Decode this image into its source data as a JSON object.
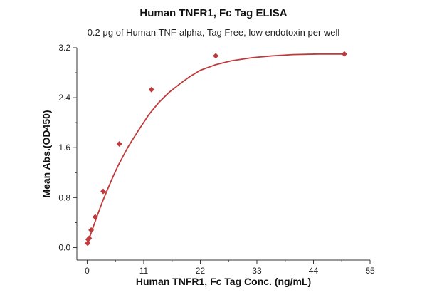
{
  "chart_data": {
    "type": "scatter",
    "title": "Human TNFR1, Fc Tag ELISA",
    "subtitle": "0.2 μg of Human TNF-alpha, Tag Free, low endotoxin per well",
    "xlabel": "Human TNFR1, Fc Tag Conc. (ng/mL)",
    "ylabel": "Mean Abs.(OD450)",
    "xlim": [
      -2,
      55
    ],
    "ylim": [
      -0.2,
      3.2
    ],
    "xticks": [
      0,
      11,
      22,
      33,
      44,
      55
    ],
    "yticks": [
      0.0,
      0.8,
      1.6,
      2.4,
      3.2
    ],
    "grid": false,
    "marker_color": "#c0393b",
    "curve_color": "#c0393b",
    "series": [
      {
        "x": [
          0.098,
          0.195,
          0.391,
          0.781,
          1.563,
          3.125,
          6.25,
          12.5,
          25,
          50
        ],
        "y": [
          0.07,
          0.13,
          0.15,
          0.28,
          0.49,
          0.9,
          1.66,
          2.53,
          3.07,
          3.1
        ]
      }
    ],
    "fit_curve": {
      "x": [
        0,
        0.5,
        1,
        2,
        3,
        4,
        5,
        6,
        8,
        10,
        12,
        14,
        16,
        18,
        20,
        22,
        25,
        28,
        32,
        36,
        40,
        45,
        50
      ],
      "y": [
        0.05,
        0.17,
        0.29,
        0.52,
        0.74,
        0.94,
        1.13,
        1.31,
        1.62,
        1.88,
        2.13,
        2.33,
        2.49,
        2.62,
        2.74,
        2.84,
        2.93,
        2.99,
        3.04,
        3.07,
        3.09,
        3.1,
        3.1
      ]
    }
  }
}
